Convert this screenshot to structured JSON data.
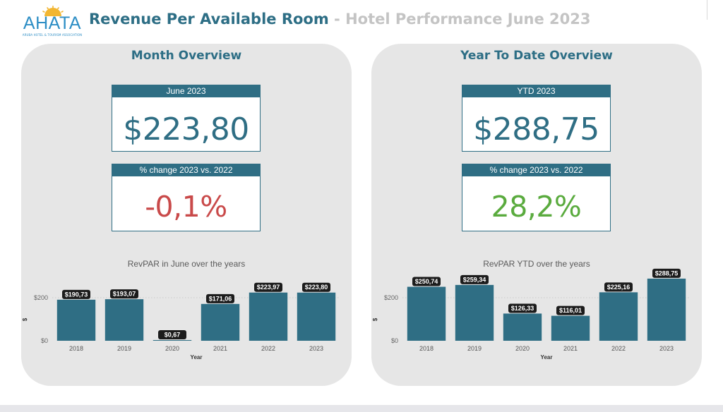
{
  "header": {
    "logo_text": "AHATA",
    "logo_subtext": "ARUBA HOTEL & TOURISM ASSOCIATION",
    "title": "Revenue Per Available Room",
    "separator": " - ",
    "subtitle": "Hotel Performance June 2023"
  },
  "colors": {
    "brand": "#2f6e84",
    "negative": "#c94a4a",
    "positive": "#5aab3e",
    "panel_bg": "#e6e6e6",
    "label_bg": "#1c1c1c"
  },
  "month_panel": {
    "title": "Month Overview",
    "card_label": "June 2023",
    "card_value": "$223,80",
    "change_label": "% change 2023 vs. 2022",
    "change_value": "-0,1%",
    "change_status": "negative"
  },
  "ytd_panel": {
    "title": "Year To Date Overview",
    "card_label": "YTD 2023",
    "card_value": "$288,75",
    "change_label": "% change 2023 vs. 2022",
    "change_value": "28,2%",
    "change_status": "positive"
  },
  "chart_data": [
    {
      "type": "bar",
      "title": "RevPAR in June over the years",
      "xlabel": "Year",
      "ylabel": "$",
      "categories": [
        "2018",
        "2019",
        "2020",
        "2021",
        "2022",
        "2023"
      ],
      "values": [
        190.73,
        193.07,
        0.67,
        171.06,
        223.97,
        223.8
      ],
      "data_labels": [
        "$190,73",
        "$193,07",
        "$0,67",
        "$171,06",
        "$223,97",
        "$223,80"
      ],
      "yticks": [
        0,
        200
      ],
      "ytick_labels": [
        "$0",
        "$200"
      ],
      "ylim": [
        0,
        300
      ],
      "grid": true
    },
    {
      "type": "bar",
      "title": "RevPAR YTD over the years",
      "xlabel": "Year",
      "ylabel": "$",
      "categories": [
        "2018",
        "2019",
        "2020",
        "2021",
        "2022",
        "2023"
      ],
      "values": [
        250.74,
        259.34,
        126.33,
        116.01,
        225.16,
        288.75
      ],
      "data_labels": [
        "$250,74",
        "$259,34",
        "$126,33",
        "$116,01",
        "$225,16",
        "$288,75"
      ],
      "yticks": [
        0,
        200
      ],
      "ytick_labels": [
        "$0",
        "$200"
      ],
      "ylim": [
        0,
        300
      ],
      "grid": true
    }
  ]
}
